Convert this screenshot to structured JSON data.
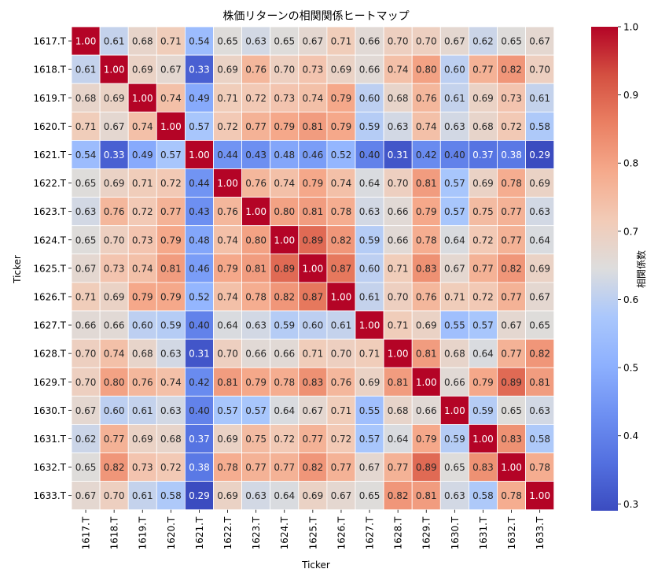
{
  "chart_data": {
    "type": "heatmap",
    "title": "株価リターンの相関関係ヒートマップ",
    "xlabel": "Ticker",
    "ylabel": "Ticker",
    "colorbar_label": "相関係数",
    "colormap": "coolwarm",
    "colorbar_ticks": [
      "0.3",
      "0.4",
      "0.5",
      "0.6",
      "0.7",
      "0.8",
      "0.9",
      "1.0"
    ],
    "value_range": [
      0.29,
      1.0
    ],
    "labels": [
      "1617.T",
      "1618.T",
      "1619.T",
      "1620.T",
      "1621.T",
      "1622.T",
      "1623.T",
      "1624.T",
      "1625.T",
      "1626.T",
      "1627.T",
      "1628.T",
      "1629.T",
      "1630.T",
      "1631.T",
      "1632.T",
      "1633.T"
    ],
    "values": [
      [
        "1.00",
        "0.61",
        "0.68",
        "0.71",
        "0.54",
        "0.65",
        "0.63",
        "0.65",
        "0.67",
        "0.71",
        "0.66",
        "0.70",
        "0.70",
        "0.67",
        "0.62",
        "0.65",
        "0.67"
      ],
      [
        "0.61",
        "1.00",
        "0.69",
        "0.67",
        "0.33",
        "0.69",
        "0.76",
        "0.70",
        "0.73",
        "0.69",
        "0.66",
        "0.74",
        "0.80",
        "0.60",
        "0.77",
        "0.82",
        "0.70"
      ],
      [
        "0.68",
        "0.69",
        "1.00",
        "0.74",
        "0.49",
        "0.71",
        "0.72",
        "0.73",
        "0.74",
        "0.79",
        "0.60",
        "0.68",
        "0.76",
        "0.61",
        "0.69",
        "0.73",
        "0.61"
      ],
      [
        "0.71",
        "0.67",
        "0.74",
        "1.00",
        "0.57",
        "0.72",
        "0.77",
        "0.79",
        "0.81",
        "0.79",
        "0.59",
        "0.63",
        "0.74",
        "0.63",
        "0.68",
        "0.72",
        "0.58"
      ],
      [
        "0.54",
        "0.33",
        "0.49",
        "0.57",
        "1.00",
        "0.44",
        "0.43",
        "0.48",
        "0.46",
        "0.52",
        "0.40",
        "0.31",
        "0.42",
        "0.40",
        "0.37",
        "0.38",
        "0.29"
      ],
      [
        "0.65",
        "0.69",
        "0.71",
        "0.72",
        "0.44",
        "1.00",
        "0.76",
        "0.74",
        "0.79",
        "0.74",
        "0.64",
        "0.70",
        "0.81",
        "0.57",
        "0.69",
        "0.78",
        "0.69"
      ],
      [
        "0.63",
        "0.76",
        "0.72",
        "0.77",
        "0.43",
        "0.76",
        "1.00",
        "0.80",
        "0.81",
        "0.78",
        "0.63",
        "0.66",
        "0.79",
        "0.57",
        "0.75",
        "0.77",
        "0.63"
      ],
      [
        "0.65",
        "0.70",
        "0.73",
        "0.79",
        "0.48",
        "0.74",
        "0.80",
        "1.00",
        "0.89",
        "0.82",
        "0.59",
        "0.66",
        "0.78",
        "0.64",
        "0.72",
        "0.77",
        "0.64"
      ],
      [
        "0.67",
        "0.73",
        "0.74",
        "0.81",
        "0.46",
        "0.79",
        "0.81",
        "0.89",
        "1.00",
        "0.87",
        "0.60",
        "0.71",
        "0.83",
        "0.67",
        "0.77",
        "0.82",
        "0.69"
      ],
      [
        "0.71",
        "0.69",
        "0.79",
        "0.79",
        "0.52",
        "0.74",
        "0.78",
        "0.82",
        "0.87",
        "1.00",
        "0.61",
        "0.70",
        "0.76",
        "0.71",
        "0.72",
        "0.77",
        "0.67"
      ],
      [
        "0.66",
        "0.66",
        "0.60",
        "0.59",
        "0.40",
        "0.64",
        "0.63",
        "0.59",
        "0.60",
        "0.61",
        "1.00",
        "0.71",
        "0.69",
        "0.55",
        "0.57",
        "0.67",
        "0.65"
      ],
      [
        "0.70",
        "0.74",
        "0.68",
        "0.63",
        "0.31",
        "0.70",
        "0.66",
        "0.66",
        "0.71",
        "0.70",
        "0.71",
        "1.00",
        "0.81",
        "0.68",
        "0.64",
        "0.77",
        "0.82"
      ],
      [
        "0.70",
        "0.80",
        "0.76",
        "0.74",
        "0.42",
        "0.81",
        "0.79",
        "0.78",
        "0.83",
        "0.76",
        "0.69",
        "0.81",
        "1.00",
        "0.66",
        "0.79",
        "0.89",
        "0.81"
      ],
      [
        "0.67",
        "0.60",
        "0.61",
        "0.63",
        "0.40",
        "0.57",
        "0.57",
        "0.64",
        "0.67",
        "0.71",
        "0.55",
        "0.68",
        "0.66",
        "1.00",
        "0.59",
        "0.65",
        "0.63"
      ],
      [
        "0.62",
        "0.77",
        "0.69",
        "0.68",
        "0.37",
        "0.69",
        "0.75",
        "0.72",
        "0.77",
        "0.72",
        "0.57",
        "0.64",
        "0.79",
        "0.59",
        "1.00",
        "0.83",
        "0.58"
      ],
      [
        "0.65",
        "0.82",
        "0.73",
        "0.72",
        "0.38",
        "0.78",
        "0.77",
        "0.77",
        "0.82",
        "0.77",
        "0.67",
        "0.77",
        "0.89",
        "0.65",
        "0.83",
        "1.00",
        "0.78"
      ],
      [
        "0.67",
        "0.70",
        "0.61",
        "0.58",
        "0.29",
        "0.69",
        "0.63",
        "0.64",
        "0.69",
        "0.67",
        "0.65",
        "0.82",
        "0.81",
        "0.63",
        "0.58",
        "0.78",
        "1.00"
      ]
    ]
  }
}
